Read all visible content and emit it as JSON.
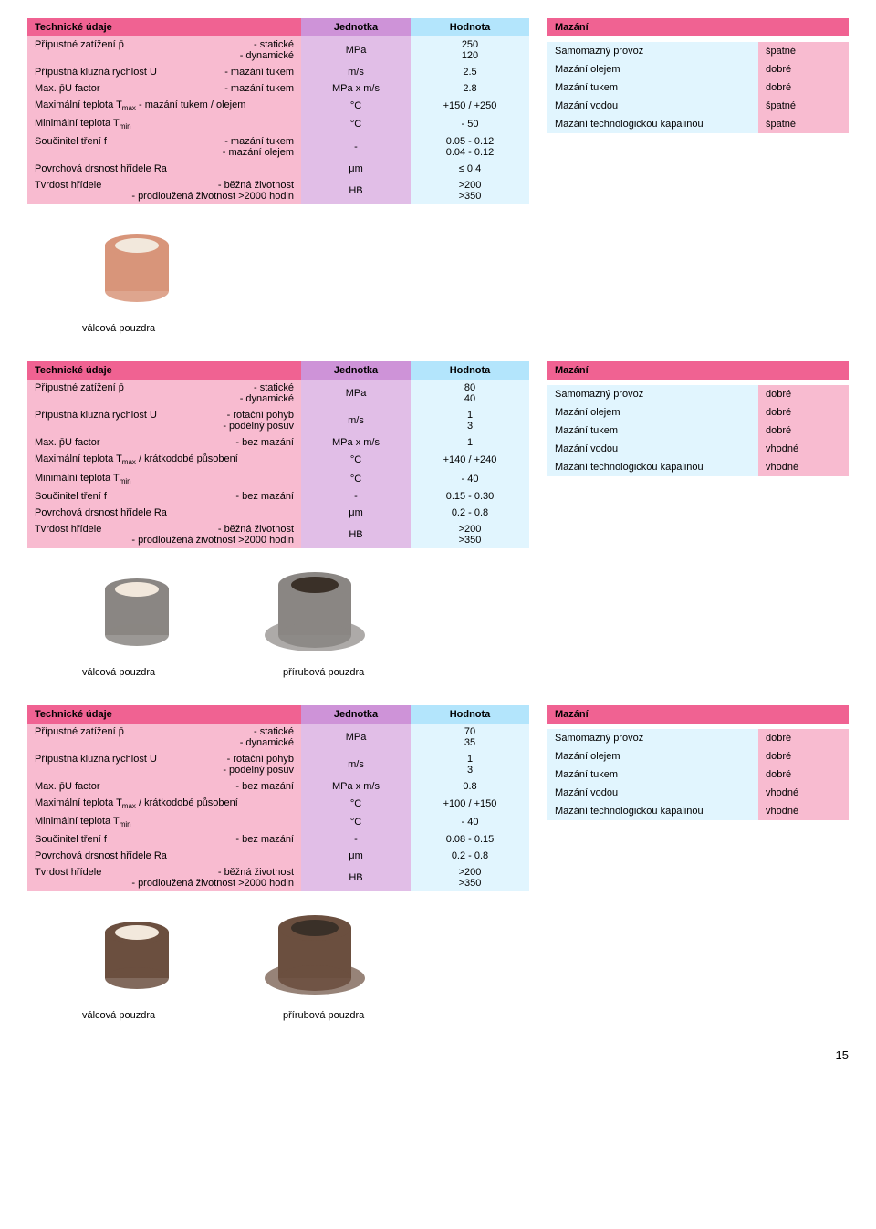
{
  "tables": [
    {
      "header": {
        "main": "Technické údaje",
        "unit": "Jednotka",
        "val": "Hodnota"
      },
      "rows": [
        {
          "labelL": "Přípustné zatížení p̄",
          "labelR": "- statické\n- dynamické",
          "unit": "MPa",
          "val": "250\n120"
        },
        {
          "labelL": "Přípustná kluzná rychlost U",
          "labelR": "- mazání tukem",
          "unit": "m/s",
          "val": "2.5"
        },
        {
          "labelL": "Max. p̄U factor",
          "labelR": "- mazání tukem",
          "unit": "MPa x m/s",
          "val": "2.8"
        },
        {
          "labelL": "Maximální teplota Tmax - mazání tukem / olejem",
          "labelR": "",
          "unit": "°C",
          "val": "+150 / +250"
        },
        {
          "labelL": "Minimální teplota Tmin",
          "labelR": "",
          "unit": "°C",
          "val": "- 50"
        },
        {
          "labelL": "Součinitel tření f",
          "labelR": "- mazání tukem\n- mazání olejem",
          "unit": "-",
          "val": "0.05 - 0.12\n0.04 - 0.12"
        },
        {
          "labelL": "Povrchová drsnost hřídele Ra",
          "labelR": "",
          "unit": "μm",
          "val": "≤ 0.4"
        },
        {
          "labelL": "Tvrdost hřídele",
          "labelR": "- běžná životnost\n- prodloužená životnost >2000 hodin",
          "unit": "HB",
          "val": ">200\n>350"
        }
      ],
      "maz": {
        "title": "Mazání",
        "rows": [
          {
            "l": "Samomazný provoz",
            "v": "špatné"
          },
          {
            "l": "Mazání olejem",
            "v": "dobré"
          },
          {
            "l": "Mazání tukem",
            "v": "dobré"
          },
          {
            "l": "Mazání vodou",
            "v": "špatné"
          },
          {
            "l": "Mazání technologickou kapalinou",
            "v": "špatné"
          }
        ]
      },
      "images": [
        {
          "cap": "válcová pouzdra",
          "color": "#d8957a"
        }
      ]
    },
    {
      "header": {
        "main": "Technické údaje",
        "unit": "Jednotka",
        "val": "Hodnota"
      },
      "rows": [
        {
          "labelL": "Přípustné zatížení p̄",
          "labelR": "- statické\n- dynamické",
          "unit": "MPa",
          "val": "80\n40"
        },
        {
          "labelL": "Přípustná kluzná rychlost U",
          "labelR": "- rotační pohyb\n- podélný posuv",
          "unit": "m/s",
          "val": "1\n3"
        },
        {
          "labelL": "Max. p̄U factor",
          "labelR": "- bez mazání",
          "unit": "MPa x m/s",
          "val": "1"
        },
        {
          "labelL": "Maximální teplota Tmax / krátkodobé působení",
          "labelR": "",
          "unit": "°C",
          "val": "+140 / +240"
        },
        {
          "labelL": "Minimální teplota Tmin",
          "labelR": "",
          "unit": "°C",
          "val": "- 40"
        },
        {
          "labelL": "Součinitel tření f",
          "labelR": "- bez mazání",
          "unit": "-",
          "val": "0.15 - 0.30"
        },
        {
          "labelL": "Povrchová drsnost hřídele Ra",
          "labelR": "",
          "unit": "μm",
          "val": "0.2 - 0.8"
        },
        {
          "labelL": "Tvrdost hřídele",
          "labelR": "- běžná životnost\n- prodloužená životnost >2000 hodin",
          "unit": "HB",
          "val": ">200\n>350"
        }
      ],
      "maz": {
        "title": "Mazání",
        "rows": [
          {
            "l": "Samomazný provoz",
            "v": "dobré"
          },
          {
            "l": "Mazání olejem",
            "v": "dobré"
          },
          {
            "l": "Mazání tukem",
            "v": "dobré"
          },
          {
            "l": "Mazání vodou",
            "v": "vhodné"
          },
          {
            "l": "Mazání technologickou kapalinou",
            "v": "vhodné"
          }
        ]
      },
      "images": [
        {
          "cap": "válcová pouzdra",
          "color": "#8a8683"
        },
        {
          "cap": "přírubová pouzdra",
          "color": "#8a8683",
          "flange": true
        }
      ]
    },
    {
      "header": {
        "main": "Technické údaje",
        "unit": "Jednotka",
        "val": "Hodnota"
      },
      "rows": [
        {
          "labelL": "Přípustné zatížení p̄",
          "labelR": "- statické\n- dynamické",
          "unit": "MPa",
          "val": "70\n35"
        },
        {
          "labelL": "Přípustná kluzná rychlost U",
          "labelR": "- rotační pohyb\n- podélný posuv",
          "unit": "m/s",
          "val": "1\n3"
        },
        {
          "labelL": "Max. p̄U factor",
          "labelR": "- bez mazání",
          "unit": "MPa x m/s",
          "val": "0.8"
        },
        {
          "labelL": "Maximální teplota Tmax / krátkodobé působení",
          "labelR": "",
          "unit": "°C",
          "val": "+100 / +150"
        },
        {
          "labelL": "Minimální teplota Tmin",
          "labelR": "",
          "unit": "°C",
          "val": "- 40"
        },
        {
          "labelL": "Součinitel tření f",
          "labelR": "- bez mazání",
          "unit": "-",
          "val": "0.08 - 0.15"
        },
        {
          "labelL": "Povrchová drsnost hřídele Ra",
          "labelR": "",
          "unit": "μm",
          "val": "0.2 - 0.8"
        },
        {
          "labelL": "Tvrdost hřídele",
          "labelR": "- běžná životnost\n- prodloužená životnost >2000 hodin",
          "unit": "HB",
          "val": ">200\n>350"
        }
      ],
      "maz": {
        "title": "Mazání",
        "rows": [
          {
            "l": "Samomazný provoz",
            "v": "dobré"
          },
          {
            "l": "Mazání olejem",
            "v": "dobré"
          },
          {
            "l": "Mazání tukem",
            "v": "dobré"
          },
          {
            "l": "Mazání vodou",
            "v": "vhodné"
          },
          {
            "l": "Mazání technologickou kapalinou",
            "v": "vhodné"
          }
        ]
      },
      "images": [
        {
          "cap": "válcová pouzdra",
          "color": "#6b4f3f"
        },
        {
          "cap": "přírubová pouzdra",
          "color": "#6b4f3f",
          "flange": true
        }
      ]
    }
  ],
  "pageNumber": "15"
}
